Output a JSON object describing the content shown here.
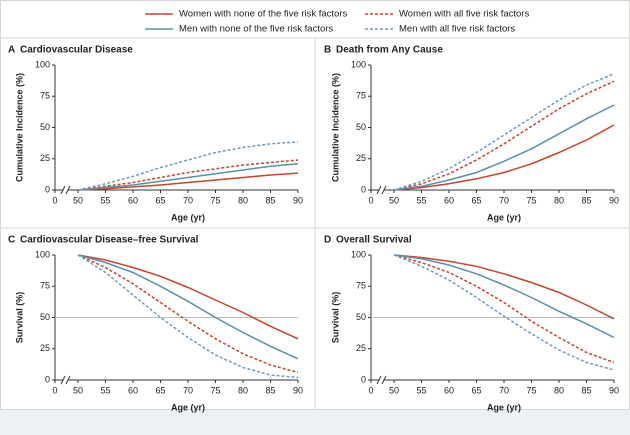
{
  "chart_data": [
    {
      "type": "line",
      "label": "A",
      "title": "Cardiovascular Disease",
      "xlabel": "Age (yr)",
      "ylabel": "Cumulative Incidence (%)",
      "x": [
        50,
        55,
        60,
        65,
        70,
        75,
        80,
        85,
        90
      ],
      "xlim": [
        0,
        90
      ],
      "xticks": [
        0,
        50,
        55,
        60,
        65,
        70,
        75,
        80,
        85,
        90
      ],
      "axis_break": true,
      "ylim": [
        0,
        100
      ],
      "yticks": [
        0,
        25,
        50,
        75,
        100
      ],
      "series": [
        {
          "name": "Women with none of the five risk factors",
          "color": "#c8432a",
          "dash": false,
          "values": [
            0,
            1,
            2.5,
            4,
            6,
            8,
            10,
            12,
            13.5
          ]
        },
        {
          "name": "Women with all five risk factors",
          "color": "#c8432a",
          "dash": true,
          "values": [
            0,
            3,
            6,
            10,
            14,
            17,
            20,
            22,
            24
          ]
        },
        {
          "name": "Men with none of the five risk factors",
          "color": "#5a8fb0",
          "dash": false,
          "values": [
            0,
            2,
            4,
            7,
            10,
            13,
            16,
            19,
            21
          ]
        },
        {
          "name": "Men with all five risk factors",
          "color": "#6e9ac0",
          "dash": true,
          "values": [
            0,
            5,
            11,
            18,
            24,
            30,
            34,
            37,
            38.5
          ]
        }
      ]
    },
    {
      "type": "line",
      "label": "B",
      "title": "Death from Any Cause",
      "xlabel": "Age (yr)",
      "ylabel": "Cumulative Incidence (%)",
      "x": [
        50,
        55,
        60,
        65,
        70,
        75,
        80,
        85,
        90
      ],
      "xlim": [
        0,
        90
      ],
      "xticks": [
        0,
        50,
        55,
        60,
        65,
        70,
        75,
        80,
        85,
        90
      ],
      "axis_break": true,
      "ylim": [
        0,
        100
      ],
      "yticks": [
        0,
        25,
        50,
        75,
        100
      ],
      "series": [
        {
          "color": "#c8432a",
          "dash": false,
          "values": [
            0,
            2,
            5,
            9,
            14,
            21,
            30,
            40,
            52
          ]
        },
        {
          "color": "#c8432a",
          "dash": true,
          "values": [
            0,
            5,
            13,
            24,
            37,
            51,
            65,
            77,
            87
          ]
        },
        {
          "color": "#5a8fb0",
          "dash": false,
          "values": [
            0,
            3,
            8,
            14,
            23,
            33,
            45,
            57,
            68
          ]
        },
        {
          "color": "#6e9ac0",
          "dash": true,
          "values": [
            0,
            7,
            17,
            30,
            44,
            58,
            72,
            84,
            93
          ]
        }
      ]
    },
    {
      "type": "line",
      "label": "C",
      "title": "Cardiovascular Disease–free Survival",
      "xlabel": "Age (yr)",
      "ylabel": "Survival (%)",
      "x": [
        50,
        55,
        60,
        65,
        70,
        75,
        80,
        85,
        90
      ],
      "xlim": [
        0,
        90
      ],
      "xticks": [
        0,
        50,
        55,
        60,
        65,
        70,
        75,
        80,
        85,
        90
      ],
      "axis_break": true,
      "ylim": [
        0,
        100
      ],
      "yticks": [
        0,
        25,
        50,
        75,
        100
      ],
      "reference_line": 50,
      "series": [
        {
          "color": "#c8432a",
          "dash": false,
          "values": [
            100,
            96,
            90,
            83,
            74,
            64,
            54,
            43,
            33
          ]
        },
        {
          "color": "#c8432a",
          "dash": true,
          "values": [
            100,
            90,
            77,
            62,
            47,
            33,
            21,
            12,
            6
          ]
        },
        {
          "color": "#5a8fb0",
          "dash": false,
          "values": [
            100,
            94,
            86,
            75,
            63,
            50,
            38,
            27,
            17
          ]
        },
        {
          "color": "#6e9ac0",
          "dash": true,
          "values": [
            100,
            86,
            68,
            50,
            34,
            20,
            10,
            4,
            2
          ]
        }
      ]
    },
    {
      "type": "line",
      "label": "D",
      "title": "Overall Survival",
      "xlabel": "Age (yr)",
      "ylabel": "Survival (%)",
      "x": [
        50,
        55,
        60,
        65,
        70,
        75,
        80,
        85,
        90
      ],
      "xlim": [
        0,
        90
      ],
      "xticks": [
        0,
        50,
        55,
        60,
        65,
        70,
        75,
        80,
        85,
        90
      ],
      "axis_break": true,
      "ylim": [
        0,
        100
      ],
      "yticks": [
        0,
        25,
        50,
        75,
        100
      ],
      "reference_line": 50,
      "series": [
        {
          "color": "#c8432a",
          "dash": false,
          "values": [
            100,
            98,
            95,
            91,
            85,
            78,
            70,
            60,
            49
          ]
        },
        {
          "color": "#c8432a",
          "dash": true,
          "values": [
            100,
            94,
            86,
            75,
            62,
            47,
            34,
            22,
            14
          ]
        },
        {
          "color": "#5a8fb0",
          "dash": false,
          "values": [
            100,
            97,
            92,
            85,
            76,
            66,
            55,
            45,
            34
          ]
        },
        {
          "color": "#6e9ac0",
          "dash": true,
          "values": [
            100,
            91,
            80,
            66,
            51,
            37,
            24,
            14,
            8
          ]
        }
      ]
    }
  ]
}
